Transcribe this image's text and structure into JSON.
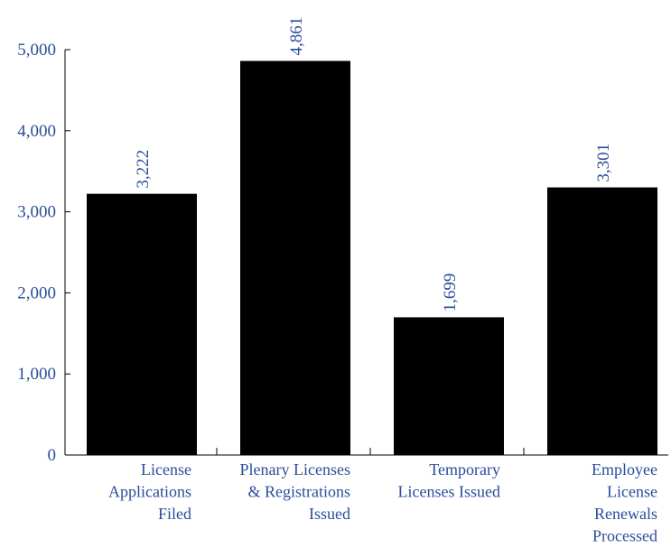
{
  "chart_data": {
    "type": "bar",
    "categories": [
      [
        "License",
        "Applications",
        "Filed"
      ],
      [
        "Plenary Licenses",
        "& Registrations",
        "Issued"
      ],
      [
        "Temporary",
        "Licenses Issued"
      ],
      [
        "Employee",
        "License",
        "Renewals",
        "Processed"
      ]
    ],
    "values": [
      3222,
      4861,
      1699,
      3301
    ],
    "data_labels": [
      "3,222",
      "4,861",
      "1,699",
      "3,301"
    ],
    "y_ticks": [
      0,
      1000,
      2000,
      3000,
      4000,
      5000
    ],
    "y_tick_labels": [
      "0",
      "1,000",
      "2,000",
      "3,000",
      "4,000",
      "5,000"
    ],
    "ylim": [
      0,
      5000
    ],
    "title": "",
    "xlabel": "",
    "ylabel": "",
    "grid": false,
    "bar_color": "#000000",
    "label_color": "#2a4d9b",
    "axis_color": "#000000"
  }
}
